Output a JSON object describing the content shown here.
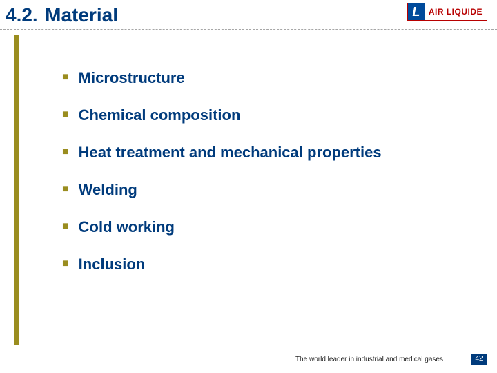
{
  "header": {
    "section_number": "4.2.",
    "section_title": "Material"
  },
  "logo": {
    "mark": "L",
    "text": "AIR LIQUIDE"
  },
  "bullets": {
    "items": [
      {
        "text": "Microstructure"
      },
      {
        "text": "Chemical composition"
      },
      {
        "text": "Heat treatment and mechanical properties"
      },
      {
        "text": "Welding"
      },
      {
        "text": "Cold working"
      },
      {
        "text": "Inclusion"
      }
    ]
  },
  "footer": {
    "tagline": "The world leader in industrial and medical gases",
    "page": "42"
  },
  "colors": {
    "title_color": "#003b7c",
    "bullet_color": "#9a8d1f",
    "sidebar_olive": "#9a8d1f",
    "logo_mark_bg": "#004a9b",
    "logo_border": "#b80000",
    "page_badge_bg": "#003b7c",
    "dash_color": "#a6a6a6",
    "background": "#ffffff"
  },
  "typography": {
    "title_fontsize": 28,
    "item_fontsize": 22,
    "tagline_fontsize": 10,
    "font_family": "Arial"
  }
}
